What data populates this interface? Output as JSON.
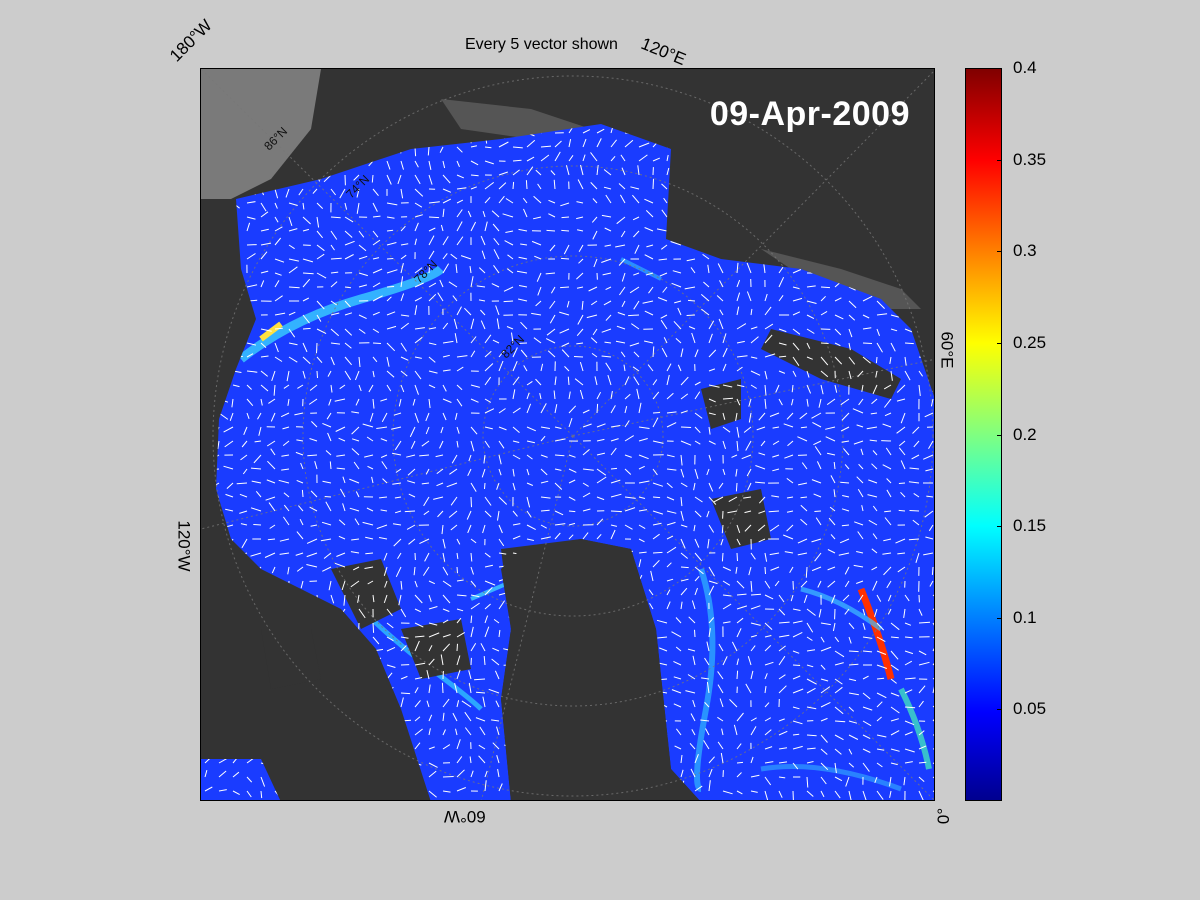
{
  "title": "Every 5 vector shown",
  "date_label": "09-Apr-2009",
  "longitude_labels": [
    "180°W",
    "120°E",
    "60°E",
    "0°",
    "60°W",
    "120°W"
  ],
  "latitude_labels": [
    "86°N",
    "78°N",
    "82°N",
    "74°N"
  ],
  "colorbar": {
    "ticks": [
      "0.4",
      "0.35",
      "0.3",
      "0.25",
      "0.2",
      "0.15",
      "0.1",
      "0.05"
    ],
    "range": [
      0,
      0.4
    ],
    "colormap": "jet"
  },
  "colors": {
    "background": "#cccccc",
    "land": "#333333",
    "land_edge": "#555555",
    "ice_base": "#1a3cff",
    "vector": "#ffffff",
    "date_text": "#ffffff"
  }
}
